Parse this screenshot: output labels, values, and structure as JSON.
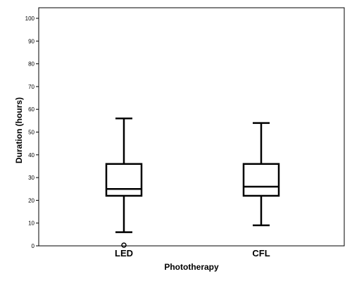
{
  "chart_data": {
    "type": "boxplot",
    "title": "",
    "xlabel": "Phototherapy",
    "ylabel": "Duration (hours)",
    "ylim": [
      0,
      100
    ],
    "y_ticks": [
      0,
      10,
      20,
      30,
      40,
      50,
      60,
      70,
      80,
      90,
      100
    ],
    "categories": [
      "LED",
      "CFL"
    ],
    "boxes": [
      {
        "category": "LED",
        "min": 6,
        "q1": 22,
        "median": 25,
        "q3": 36,
        "max": 56,
        "outliers": [
          0
        ]
      },
      {
        "category": "CFL",
        "min": 9,
        "q1": 22,
        "median": 26,
        "q3": 36,
        "max": 54,
        "outliers": []
      }
    ],
    "grid": false,
    "legend": "none"
  }
}
